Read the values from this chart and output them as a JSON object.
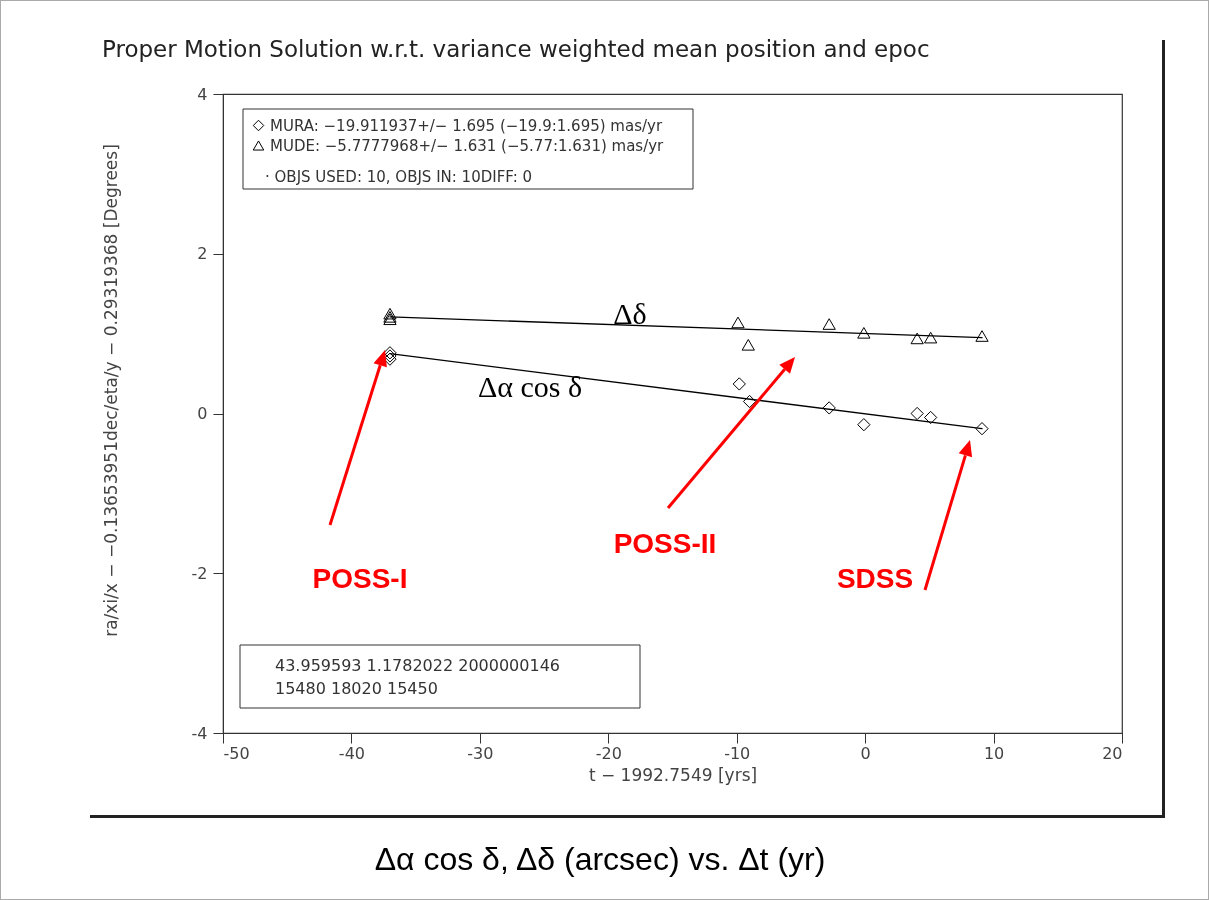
{
  "chart_data": {
    "type": "scatter",
    "title": "Proper Motion Solution w.r.t. variance weighted mean position and epoc",
    "xlabel": "t − 1992.7549 [yrs]",
    "ylabel": "ra/xi/x − −0.13653951dec/eta/y − 0.29319368 [Degrees]",
    "series": [
      {
        "name": "MURA: −19.911937+/− 1.695 (−19.9:1.695) mas/yr",
        "color": "#000000",
        "marker": "diamond",
        "x": [
          -37,
          -37,
          -37,
          -9.8,
          -9.0,
          -2.8,
          -0.1,
          4.05,
          5.1,
          9.1
        ],
        "values": [
          0.76,
          0.72,
          0.68,
          0.37,
          0.15,
          0.07,
          -0.14,
          0.0,
          -0.05,
          -0.19
        ]
      },
      {
        "name": "MUDE: −5.7777968+/− 1.631 (−5.77:1.631) mas/yr",
        "color": "#000000",
        "marker": "triangle",
        "x": [
          -37,
          -37,
          -37,
          -9.9,
          -9.1,
          -2.8,
          -0.1,
          4.05,
          5.1,
          9.1
        ],
        "values": [
          1.25,
          1.21,
          1.18,
          1.14,
          0.86,
          1.12,
          1.01,
          0.94,
          0.95,
          0.97
        ]
      },
      {
        "type": "line",
        "color": "#000000",
        "x": [
          -37,
          9.1
        ],
        "values": [
          0.75,
          -0.19
        ]
      },
      {
        "type": "line",
        "color": "#000000",
        "x": [
          -37,
          9.1
        ],
        "values": [
          1.21,
          0.95
        ]
      }
    ],
    "xlim": [
      -50,
      20
    ],
    "xticks": [
      -50,
      -40,
      -30,
      -20,
      -10,
      0,
      10,
      20
    ],
    "ylim": [
      -4,
      4
    ],
    "yticks": [
      -4,
      -2,
      0,
      2,
      4
    ],
    "legend": "top left",
    "annotations": [
      "· OBJS USED: 10, OBJS IN: 10DIFF: 0",
      "43.959593 1.1782022 2000000146",
      "15480 18020 15450",
      "Δδ",
      "Δα cos δ",
      "POSS-I",
      "POSS-II",
      "SDSS",
      "Δα cos δ, Δδ  (arcsec)  vs. Δt (yr)"
    ]
  }
}
